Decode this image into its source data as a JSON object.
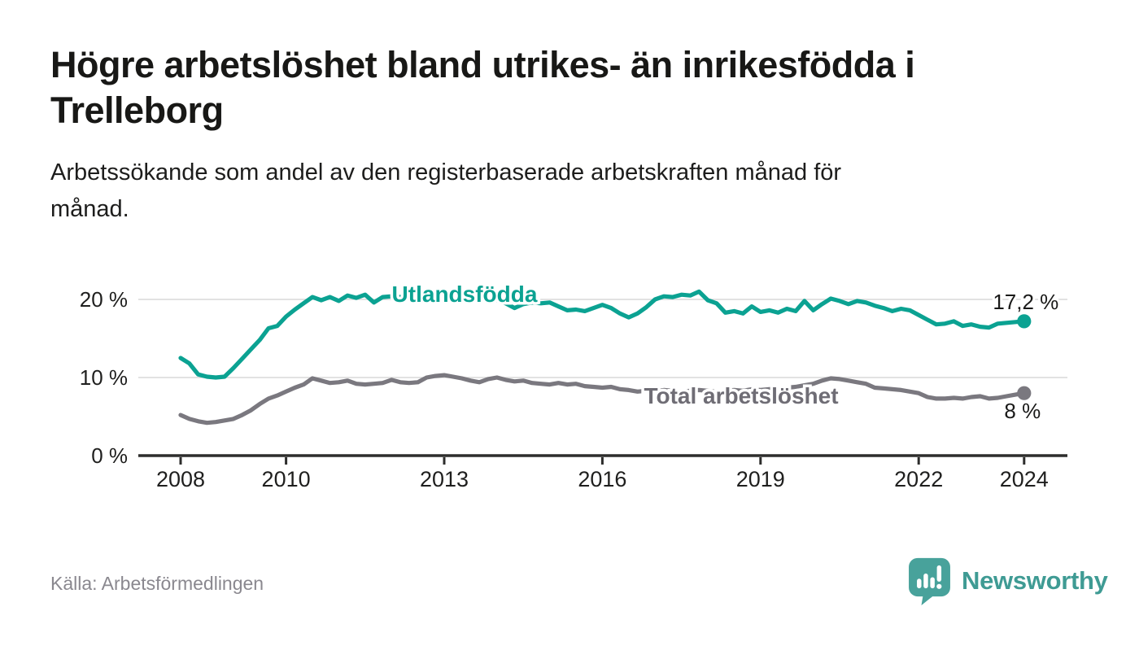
{
  "header": {
    "title": "Högre arbetslöshet bland utrikes- än inrikesfödda i\nTrelleborg",
    "subtitle": "Arbetssökande som andel av den registerbaserade arbetskraften månad för\nmånad."
  },
  "footer": {
    "source": "Källa: Arbetsförmedlingen",
    "brand": "Newsworthy",
    "brand_icon": "speech-bubble-with-bar-chart-and-exclamation"
  },
  "colors": {
    "accent_teal": "#0ba292",
    "total_gray": "#7a787f",
    "total_label_gray": "#6f6d75",
    "value_label": "#1a1a19",
    "axis": "#2d2d2c",
    "gridline": "#d9d9d9",
    "brand_teal": "#48a29b",
    "brand_text_teal": "#3f9b94",
    "source_gray": "#8a888f"
  },
  "chart_data": {
    "type": "line",
    "title": "Högre arbetslöshet bland utrikes- än inrikesfödda i Trelleborg",
    "xlabel": "",
    "ylabel": "Arbetssökande som andel av den registerbaserade arbetskraften",
    "x_start_year": 2008,
    "x_end_year": 2024,
    "x_step_months": 2,
    "ylim": [
      0,
      22
    ],
    "grid": "horizontal",
    "legend_position": "inline-labels",
    "yticks": [
      {
        "value": 0,
        "label": "0 %"
      },
      {
        "value": 10,
        "label": "10 %"
      },
      {
        "value": 20,
        "label": "20 %"
      }
    ],
    "xticks": [
      {
        "year": 2008,
        "label": "2008"
      },
      {
        "year": 2010,
        "label": "2010"
      },
      {
        "year": 2013,
        "label": "2013"
      },
      {
        "year": 2016,
        "label": "2016"
      },
      {
        "year": 2019,
        "label": "2019"
      },
      {
        "year": 2022,
        "label": "2022"
      },
      {
        "year": 2024,
        "label": "2024"
      }
    ],
    "series": [
      {
        "name": "Utlandsfödda",
        "color": "#0ba292",
        "label_color": "#0ba292",
        "end_value": 17.2,
        "end_label": "17,2 %",
        "values": [
          12.5,
          11.8,
          10.4,
          10.1,
          10.0,
          10.1,
          11.2,
          12.4,
          13.6,
          14.8,
          16.3,
          16.6,
          17.8,
          18.7,
          19.5,
          20.3,
          19.9,
          20.3,
          19.8,
          20.5,
          20.2,
          20.6,
          19.6,
          20.3,
          20.4,
          20.3,
          20.5,
          20.3,
          20.5,
          20.4,
          20.3,
          20.5,
          20.4,
          20.2,
          19.9,
          20.0,
          19.9,
          19.5,
          18.9,
          19.4,
          19.6,
          19.5,
          19.6,
          19.1,
          18.6,
          18.7,
          18.5,
          18.9,
          19.3,
          18.9,
          18.2,
          17.7,
          18.2,
          19.0,
          20.0,
          20.4,
          20.3,
          20.6,
          20.5,
          21.0,
          19.9,
          19.5,
          18.3,
          18.5,
          18.2,
          19.1,
          18.4,
          18.6,
          18.3,
          18.8,
          18.5,
          19.8,
          18.6,
          19.4,
          20.1,
          19.8,
          19.4,
          19.8,
          19.6,
          19.2,
          18.9,
          18.5,
          18.8,
          18.6,
          18.0,
          17.4,
          16.8,
          16.9,
          17.2,
          16.6,
          16.8,
          16.5,
          16.4,
          16.9,
          17.0,
          17.1,
          17.2
        ]
      },
      {
        "name": "Total arbetslöshet",
        "color": "#7a787f",
        "label_color": "#6f6d75",
        "end_value": 8,
        "end_label": "8 %",
        "values": [
          5.2,
          4.7,
          4.4,
          4.2,
          4.3,
          4.5,
          4.7,
          5.2,
          5.8,
          6.6,
          7.3,
          7.7,
          8.2,
          8.7,
          9.1,
          9.9,
          9.6,
          9.3,
          9.4,
          9.6,
          9.2,
          9.1,
          9.2,
          9.3,
          9.7,
          9.4,
          9.3,
          9.4,
          10.0,
          10.2,
          10.3,
          10.1,
          9.9,
          9.6,
          9.4,
          9.8,
          10.0,
          9.7,
          9.5,
          9.6,
          9.3,
          9.2,
          9.1,
          9.3,
          9.1,
          9.2,
          8.9,
          8.8,
          8.7,
          8.8,
          8.5,
          8.4,
          8.2,
          8.3,
          8.2,
          8.4,
          8.3,
          8.2,
          8.3,
          8.4,
          8.3,
          8.2,
          8.3,
          8.4,
          8.3,
          8.5,
          8.4,
          8.5,
          8.6,
          8.7,
          8.8,
          9.0,
          9.2,
          9.6,
          9.9,
          9.8,
          9.6,
          9.4,
          9.2,
          8.7,
          8.6,
          8.5,
          8.4,
          8.2,
          8.0,
          7.5,
          7.3,
          7.3,
          7.4,
          7.3,
          7.5,
          7.6,
          7.3,
          7.4,
          7.6,
          7.8,
          8.0
        ]
      }
    ]
  }
}
